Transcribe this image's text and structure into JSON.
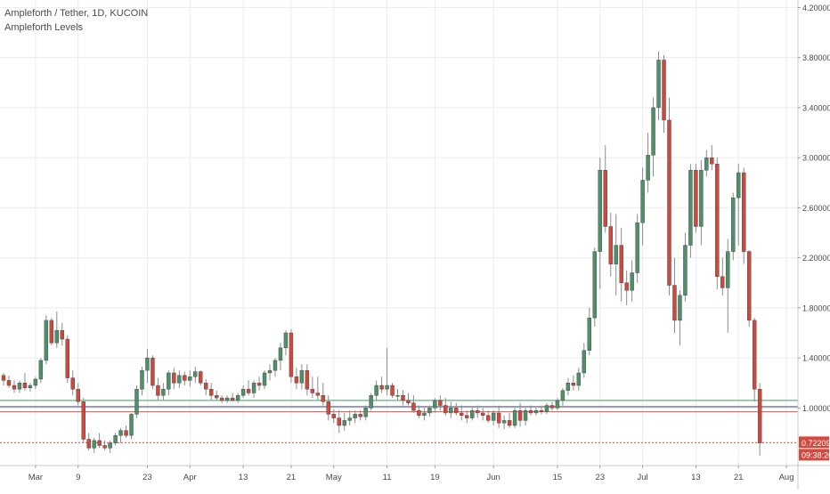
{
  "legend": {
    "symbol_title": "Ampleforth / Tether, 1D, KUCOIN",
    "indicator": "Ampleforth Levels"
  },
  "price_scale": {
    "ticks": [
      "4.20000",
      "3.80000",
      "3.40000",
      "3.00000",
      "2.60000",
      "2.20000",
      "1.80000",
      "1.40000",
      "1.00000"
    ],
    "last_price_label": "0.72209",
    "countdown_label": "09:38:26"
  },
  "time_scale": {
    "ticks": [
      "Mar",
      "9",
      "23",
      "Apr",
      "13",
      "21",
      "May",
      "11",
      "19",
      "Jun",
      "15",
      "23",
      "Jul",
      "13",
      "21",
      "Aug"
    ]
  },
  "colors": {
    "up": "#4f8f6a",
    "down": "#d0473c",
    "wick": "#8c8c8c",
    "green_level": "#5fb57d",
    "red_level": "#e06a62",
    "dark_level": "#555577",
    "grid": "#ececec",
    "axis_text": "#4a4a4a",
    "price_label_bg": "#d24a3f"
  },
  "chart_data": {
    "type": "candlestick",
    "symbol": "Ampleforth / Tether",
    "interval": "1D",
    "exchange": "KUCOIN",
    "y_range": [
      0.54,
      4.26
    ],
    "price_ticks": [
      4.2,
      3.8,
      3.4,
      3.0,
      2.6,
      2.2,
      1.8,
      1.4,
      1.0
    ],
    "levels": [
      {
        "value": 1.06,
        "color": "green"
      },
      {
        "value": 1.01,
        "color": "dark"
      },
      {
        "value": 0.97,
        "color": "red"
      },
      {
        "value": 0.722,
        "color": "red",
        "style": "dotted",
        "label": "last price"
      }
    ],
    "last_price": 0.72209,
    "candles_ohlc": [
      [
        1.26,
        1.28,
        1.18,
        1.22
      ],
      [
        1.22,
        1.26,
        1.16,
        1.18
      ],
      [
        1.18,
        1.22,
        1.12,
        1.15
      ],
      [
        1.15,
        1.22,
        1.12,
        1.2
      ],
      [
        1.2,
        1.28,
        1.14,
        1.16
      ],
      [
        1.16,
        1.2,
        1.13,
        1.18
      ],
      [
        1.18,
        1.25,
        1.15,
        1.23
      ],
      [
        1.23,
        1.4,
        1.2,
        1.38
      ],
      [
        1.38,
        1.74,
        1.35,
        1.7
      ],
      [
        1.7,
        1.72,
        1.5,
        1.52
      ],
      [
        1.52,
        1.77,
        1.48,
        1.62
      ],
      [
        1.62,
        1.68,
        1.5,
        1.55
      ],
      [
        1.55,
        1.58,
        1.2,
        1.24
      ],
      [
        1.24,
        1.3,
        1.1,
        1.15
      ],
      [
        1.15,
        1.2,
        1.02,
        1.05
      ],
      [
        1.05,
        1.08,
        0.72,
        0.75
      ],
      [
        0.75,
        0.8,
        0.66,
        0.68
      ],
      [
        0.68,
        0.76,
        0.64,
        0.74
      ],
      [
        0.74,
        0.8,
        0.68,
        0.7
      ],
      [
        0.7,
        0.74,
        0.66,
        0.68
      ],
      [
        0.68,
        0.74,
        0.64,
        0.72
      ],
      [
        0.72,
        0.8,
        0.7,
        0.78
      ],
      [
        0.78,
        0.84,
        0.72,
        0.82
      ],
      [
        0.82,
        0.86,
        0.76,
        0.78
      ],
      [
        0.78,
        0.96,
        0.75,
        0.95
      ],
      [
        0.95,
        1.18,
        0.92,
        1.15
      ],
      [
        1.15,
        1.33,
        1.1,
        1.3
      ],
      [
        1.3,
        1.47,
        1.2,
        1.4
      ],
      [
        1.4,
        1.42,
        1.15,
        1.18
      ],
      [
        1.18,
        1.24,
        1.06,
        1.1
      ],
      [
        1.1,
        1.2,
        1.06,
        1.15
      ],
      [
        1.15,
        1.3,
        1.1,
        1.28
      ],
      [
        1.28,
        1.32,
        1.15,
        1.2
      ],
      [
        1.2,
        1.3,
        1.16,
        1.26
      ],
      [
        1.26,
        1.29,
        1.18,
        1.22
      ],
      [
        1.22,
        1.3,
        1.17,
        1.25
      ],
      [
        1.25,
        1.33,
        1.2,
        1.29
      ],
      [
        1.29,
        1.3,
        1.18,
        1.2
      ],
      [
        1.2,
        1.23,
        1.1,
        1.15
      ],
      [
        1.15,
        1.2,
        1.06,
        1.1
      ],
      [
        1.1,
        1.14,
        1.06,
        1.08
      ],
      [
        1.08,
        1.1,
        1.04,
        1.06
      ],
      [
        1.06,
        1.1,
        1.04,
        1.08
      ],
      [
        1.08,
        1.12,
        1.05,
        1.06
      ],
      [
        1.06,
        1.12,
        1.04,
        1.1
      ],
      [
        1.1,
        1.18,
        1.08,
        1.15
      ],
      [
        1.15,
        1.22,
        1.1,
        1.12
      ],
      [
        1.12,
        1.22,
        1.08,
        1.2
      ],
      [
        1.2,
        1.25,
        1.14,
        1.18
      ],
      [
        1.18,
        1.3,
        1.15,
        1.28
      ],
      [
        1.28,
        1.35,
        1.22,
        1.3
      ],
      [
        1.3,
        1.4,
        1.25,
        1.38
      ],
      [
        1.38,
        1.52,
        1.3,
        1.48
      ],
      [
        1.48,
        1.62,
        1.42,
        1.6
      ],
      [
        1.6,
        1.63,
        1.2,
        1.25
      ],
      [
        1.25,
        1.32,
        1.15,
        1.2
      ],
      [
        1.2,
        1.35,
        1.15,
        1.3
      ],
      [
        1.3,
        1.35,
        1.1,
        1.15
      ],
      [
        1.15,
        1.25,
        1.08,
        1.12
      ],
      [
        1.12,
        1.25,
        1.06,
        1.1
      ],
      [
        1.1,
        1.2,
        1.02,
        1.05
      ],
      [
        1.05,
        1.1,
        0.9,
        0.95
      ],
      [
        0.95,
        0.99,
        0.88,
        0.92
      ],
      [
        0.92,
        0.98,
        0.8,
        0.86
      ],
      [
        0.86,
        0.96,
        0.82,
        0.9
      ],
      [
        0.9,
        0.98,
        0.86,
        0.92
      ],
      [
        0.92,
        0.98,
        0.88,
        0.95
      ],
      [
        0.95,
        0.98,
        0.9,
        0.93
      ],
      [
        0.93,
        1.02,
        0.9,
        1.0
      ],
      [
        1.0,
        1.12,
        0.98,
        1.1
      ],
      [
        1.1,
        1.22,
        1.06,
        1.18
      ],
      [
        1.18,
        1.25,
        1.12,
        1.15
      ],
      [
        1.15,
        1.48,
        1.1,
        1.18
      ],
      [
        1.18,
        1.2,
        1.08,
        1.1
      ],
      [
        1.1,
        1.15,
        1.06,
        1.1
      ],
      [
        1.1,
        1.14,
        1.02,
        1.06
      ],
      [
        1.06,
        1.12,
        1.02,
        1.04
      ],
      [
        1.04,
        1.1,
        0.96,
        0.98
      ],
      [
        0.98,
        1.02,
        0.92,
        0.94
      ],
      [
        0.94,
        1.0,
        0.9,
        0.96
      ],
      [
        0.96,
        1.02,
        0.93,
        1.0
      ],
      [
        1.0,
        1.08,
        0.96,
        1.06
      ],
      [
        1.06,
        1.1,
        0.98,
        1.02
      ],
      [
        1.02,
        1.08,
        0.94,
        0.96
      ],
      [
        0.96,
        1.05,
        0.92,
        1.0
      ],
      [
        1.0,
        1.04,
        0.94,
        0.96
      ],
      [
        0.96,
        1.02,
        0.9,
        0.94
      ],
      [
        0.94,
        0.98,
        0.88,
        0.92
      ],
      [
        0.92,
        1.0,
        0.9,
        0.98
      ],
      [
        0.98,
        1.02,
        0.92,
        0.96
      ],
      [
        0.96,
        1.0,
        0.9,
        0.94
      ],
      [
        0.94,
        0.98,
        0.88,
        0.9
      ],
      [
        0.9,
        0.98,
        0.86,
        0.96
      ],
      [
        0.96,
        1.02,
        0.84,
        0.88
      ],
      [
        0.88,
        0.94,
        0.83,
        0.9
      ],
      [
        0.9,
        0.96,
        0.84,
        0.86
      ],
      [
        0.86,
        1.0,
        0.84,
        0.98
      ],
      [
        0.98,
        1.04,
        0.85,
        0.9
      ],
      [
        0.9,
        1.0,
        0.86,
        0.98
      ],
      [
        0.98,
        1.02,
        0.94,
        0.96
      ],
      [
        0.96,
        1.0,
        0.94,
        0.98
      ],
      [
        0.98,
        1.02,
        0.95,
        0.97
      ],
      [
        0.97,
        1.04,
        0.95,
        1.02
      ],
      [
        1.02,
        1.05,
        0.98,
        1.0
      ],
      [
        1.0,
        1.08,
        0.98,
        1.06
      ],
      [
        1.06,
        1.16,
        1.02,
        1.14
      ],
      [
        1.14,
        1.24,
        1.1,
        1.2
      ],
      [
        1.2,
        1.26,
        1.14,
        1.18
      ],
      [
        1.18,
        1.32,
        1.14,
        1.28
      ],
      [
        1.28,
        1.52,
        1.24,
        1.46
      ],
      [
        1.46,
        1.8,
        1.42,
        1.72
      ],
      [
        1.72,
        2.28,
        1.65,
        2.25
      ],
      [
        2.25,
        3.0,
        1.95,
        2.9
      ],
      [
        2.9,
        3.1,
        2.4,
        2.45
      ],
      [
        2.45,
        2.56,
        2.05,
        2.15
      ],
      [
        2.15,
        2.55,
        1.9,
        2.3
      ],
      [
        2.3,
        2.44,
        1.85,
        2.0
      ],
      [
        2.0,
        2.1,
        1.82,
        1.94
      ],
      [
        1.94,
        2.18,
        1.85,
        2.08
      ],
      [
        2.08,
        2.55,
        2.0,
        2.48
      ],
      [
        2.48,
        2.92,
        2.3,
        2.82
      ],
      [
        2.82,
        3.2,
        2.72,
        3.02
      ],
      [
        3.02,
        3.48,
        2.85,
        3.4
      ],
      [
        3.4,
        3.85,
        3.3,
        3.78
      ],
      [
        3.78,
        3.82,
        3.2,
        3.3
      ],
      [
        3.3,
        3.48,
        1.9,
        1.98
      ],
      [
        1.98,
        2.2,
        1.6,
        1.7
      ],
      [
        1.7,
        1.94,
        1.5,
        1.9
      ],
      [
        1.9,
        2.4,
        1.85,
        2.3
      ],
      [
        2.3,
        2.95,
        2.2,
        2.9
      ],
      [
        2.9,
        2.95,
        2.4,
        2.45
      ],
      [
        2.45,
        2.98,
        2.3,
        2.9
      ],
      [
        2.9,
        3.06,
        2.85,
        3.0
      ],
      [
        3.0,
        3.1,
        2.9,
        2.95
      ],
      [
        2.95,
        3.0,
        1.95,
        2.05
      ],
      [
        2.05,
        2.2,
        1.9,
        1.96
      ],
      [
        1.96,
        2.35,
        1.6,
        2.25
      ],
      [
        2.25,
        2.72,
        2.18,
        2.68
      ],
      [
        2.68,
        2.95,
        2.3,
        2.88
      ],
      [
        2.88,
        2.92,
        2.15,
        2.25
      ],
      [
        2.25,
        2.26,
        1.65,
        1.7
      ],
      [
        1.7,
        1.72,
        1.05,
        1.15
      ],
      [
        1.15,
        1.2,
        0.62,
        0.72
      ]
    ]
  }
}
